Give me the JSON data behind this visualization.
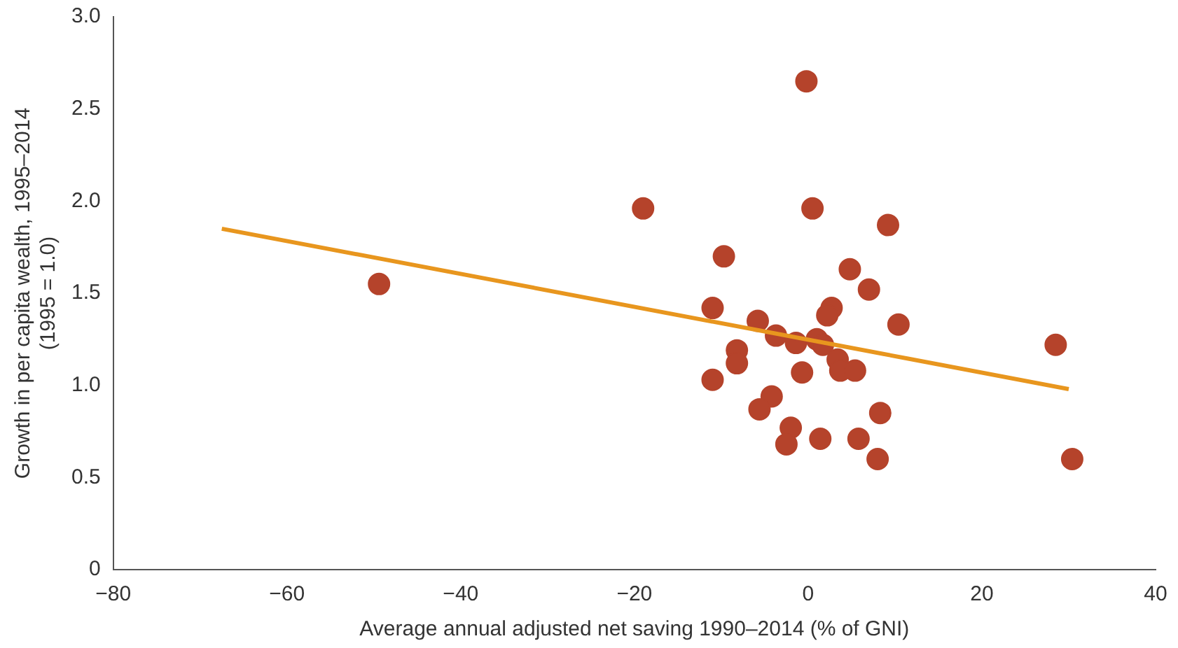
{
  "chart_data": {
    "type": "scatter",
    "xlabel": "Average annual adjusted net saving 1990–2014 (% of GNI)",
    "ylabel": "Growth in per capita wealth, 1995–2014\n(1995 = 1.0)",
    "xlim": [
      -80,
      40
    ],
    "xticks": [
      {
        "value": -80,
        "label": "−80"
      },
      {
        "value": -60,
        "label": "−60"
      },
      {
        "value": -40,
        "label": "−40"
      },
      {
        "value": -20,
        "label": "−20"
      },
      0,
      20,
      40
    ],
    "ylim": [
      0,
      3
    ],
    "yticks": [
      0,
      {
        "value": 0.5,
        "label": "0.5"
      },
      {
        "value": 1,
        "label": "1.0"
      },
      {
        "value": 1.5,
        "label": "1.5"
      },
      {
        "value": 2,
        "label": "2.0"
      },
      {
        "value": 2.5,
        "label": "2.5"
      },
      {
        "value": 3,
        "label": "3.0"
      }
    ],
    "grid": false,
    "legend": false,
    "series": [
      {
        "color": "#b5432b",
        "marker": "circle",
        "x": [
          -49.4,
          -19.0,
          -0.2,
          0.5,
          9.2,
          -9.7,
          4.8,
          7.0,
          2.7,
          2.2,
          -11.0,
          10.4,
          -5.8,
          -3.7,
          -1.4,
          1.0,
          1.7,
          -8.2,
          -8.2,
          3.4,
          3.7,
          5.4,
          -0.7,
          -11.0,
          -4.2,
          -5.6,
          -2.0,
          -2.5,
          1.4,
          8.3,
          5.8,
          8.0,
          28.5,
          30.4
        ],
        "values": [
          1.55,
          1.96,
          2.65,
          1.96,
          1.87,
          1.7,
          1.63,
          1.52,
          1.42,
          1.38,
          1.42,
          1.33,
          1.35,
          1.27,
          1.23,
          1.25,
          1.22,
          1.19,
          1.12,
          1.14,
          1.08,
          1.08,
          1.07,
          1.03,
          0.94,
          0.87,
          0.77,
          0.68,
          0.71,
          0.85,
          0.71,
          0.6,
          1.22,
          0.6
        ]
      },
      {
        "type": "line",
        "marker": "none",
        "color": "#e8961e",
        "x": [
          -67.5,
          30
        ],
        "values": [
          1.85,
          0.98
        ]
      }
    ]
  }
}
